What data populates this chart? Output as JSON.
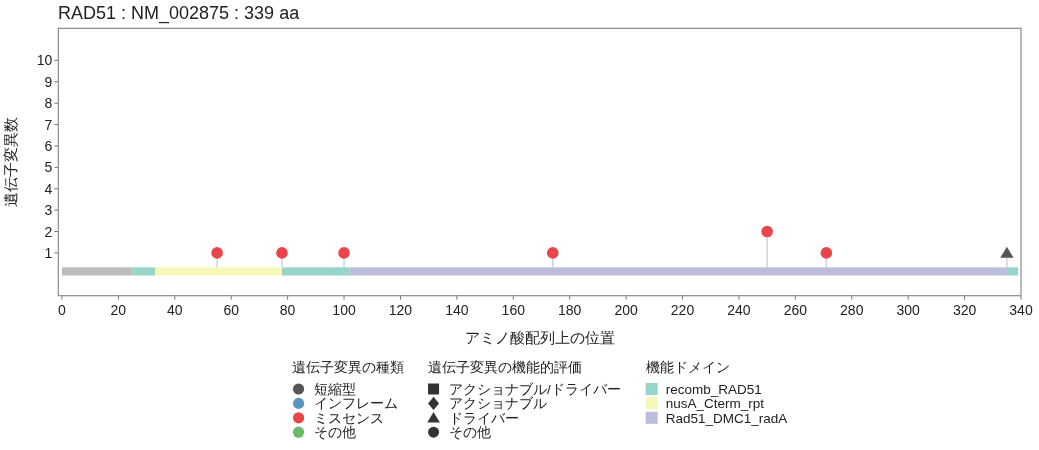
{
  "chart_data": [
    {
      "type": "lollipop",
      "title": "RAD51 : NM_002875 : 339 aa",
      "xlabel": "アミノ酸配列上の位置",
      "ylabel": "遺伝子変異数",
      "xlim": [
        -1.3,
        340
      ],
      "ylim": [
        -1,
        11.5
      ],
      "yticks": [
        1,
        2,
        3,
        4,
        5,
        6,
        7,
        8,
        9,
        10
      ],
      "tick_labels": "y",
      "marker": "circle",
      "legend": "bottom",
      "annotations": [
        "遺伝子変異の種類",
        "遺伝子変異の機能的評価"
      ],
      "series": [
        {
          "name": "短縮型",
          "color": "#555555",
          "marker": "triangle",
          "x": [
            335
          ],
          "values": [
            1
          ]
        },
        {
          "name": "インフレーム",
          "color": "#5b93c7"
        },
        {
          "name": "ミスセンス",
          "color": "#e8464b",
          "x": [
            55,
            78,
            100,
            174,
            250,
            271
          ],
          "values": [
            1,
            1,
            1,
            1,
            2,
            1
          ]
        },
        {
          "name": "その他",
          "color": "#6abb68"
        },
        {
          "name": "アクショナブル/ドライバー",
          "marker": "square"
        },
        {
          "name": "アクショナブル",
          "marker": "diamond"
        },
        {
          "name": "ドライバー",
          "marker": "triangle"
        },
        {
          "name": "その他",
          "marker": "circle"
        }
      ]
    },
    {
      "type": "bar",
      "orientation": "horizontal",
      "stacked": true,
      "categories": [
        null
      ],
      "xlim": [
        -1.3,
        340
      ],
      "xticks": [
        0,
        20,
        40,
        60,
        80,
        100,
        120,
        140,
        160,
        180,
        200,
        220,
        240,
        260,
        280,
        300,
        320,
        340
      ],
      "legend": "bottom",
      "legend_title": "機能ドメイン",
      "series": [
        {
          "color": "#bdbdbd",
          "values": [
            25
          ]
        },
        {
          "name": "recomb_RAD51",
          "color": "#96d5c8",
          "values": [
            8
          ]
        },
        {
          "name": "nusA_Cterm_rpt",
          "color": "#f5f8b9",
          "values": [
            45
          ]
        },
        {
          "color": "#96d5c8",
          "values": [
            24
          ]
        },
        {
          "name": "Rad51_DMC1_radA",
          "color": "#bcbcdb",
          "values": [
            233
          ]
        },
        {
          "color": "#96d5c8",
          "values": [
            4
          ]
        }
      ]
    }
  ]
}
